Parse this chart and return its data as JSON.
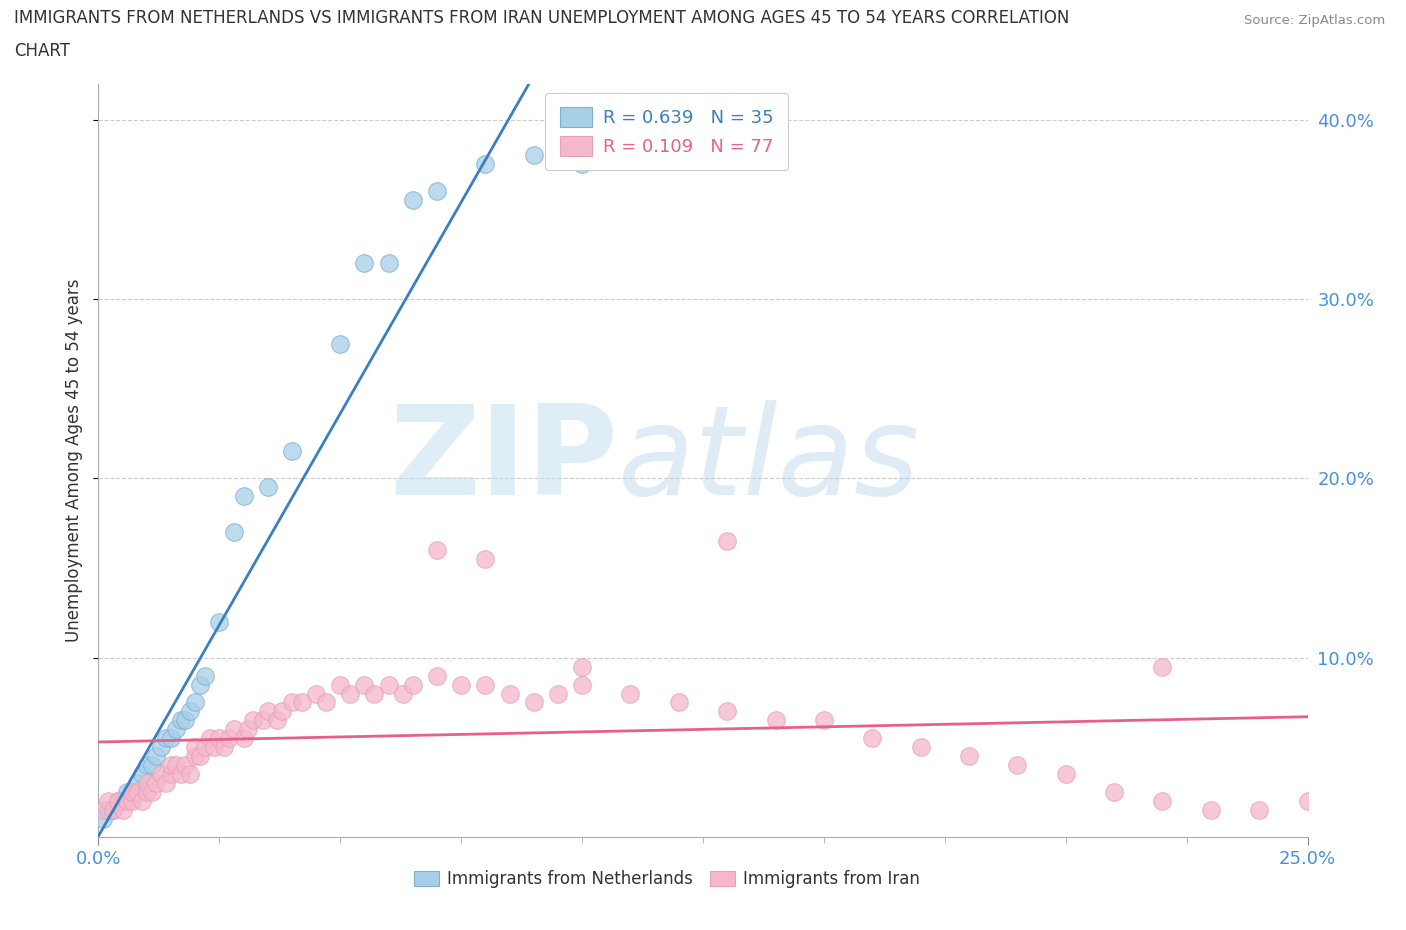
{
  "title_line1": "IMMIGRANTS FROM NETHERLANDS VS IMMIGRANTS FROM IRAN UNEMPLOYMENT AMONG AGES 45 TO 54 YEARS CORRELATION",
  "title_line2": "CHART",
  "source_text": "Source: ZipAtlas.com",
  "ylabel": "Unemployment Among Ages 45 to 54 years",
  "xlim": [
    0.0,
    0.25
  ],
  "ylim": [
    0.0,
    0.42
  ],
  "y_ticks_right": [
    0.1,
    0.2,
    0.3,
    0.4
  ],
  "y_tick_labels_right": [
    "10.0%",
    "20.0%",
    "30.0%",
    "40.0%"
  ],
  "background_color": "#ffffff",
  "grid_color": "#dddddd",
  "watermark_zip": "ZIP",
  "watermark_atlas": "atlas",
  "netherlands_color": "#a8cfe8",
  "iran_color": "#f5b8cb",
  "netherlands_line_color": "#3a7fc1",
  "iran_line_color": "#e8608a",
  "legend_netherlands_R": "0.639",
  "legend_netherlands_N": "35",
  "legend_iran_R": "0.109",
  "legend_iran_N": "77",
  "nl_x": [
    0.001,
    0.002,
    0.003,
    0.004,
    0.005,
    0.006,
    0.007,
    0.008,
    0.009,
    0.01,
    0.011,
    0.012,
    0.013,
    0.014,
    0.015,
    0.016,
    0.017,
    0.018,
    0.019,
    0.02,
    0.021,
    0.022,
    0.025,
    0.028,
    0.03,
    0.035,
    0.04,
    0.05,
    0.055,
    0.06,
    0.065,
    0.07,
    0.08,
    0.09,
    0.1
  ],
  "nl_y": [
    0.01,
    0.015,
    0.015,
    0.02,
    0.02,
    0.025,
    0.025,
    0.03,
    0.035,
    0.04,
    0.04,
    0.045,
    0.05,
    0.055,
    0.055,
    0.06,
    0.065,
    0.065,
    0.07,
    0.075,
    0.085,
    0.09,
    0.12,
    0.17,
    0.19,
    0.195,
    0.215,
    0.275,
    0.32,
    0.32,
    0.355,
    0.36,
    0.375,
    0.38,
    0.375
  ],
  "iran_x": [
    0.001,
    0.002,
    0.003,
    0.004,
    0.005,
    0.006,
    0.007,
    0.007,
    0.008,
    0.009,
    0.01,
    0.01,
    0.011,
    0.012,
    0.013,
    0.014,
    0.015,
    0.015,
    0.016,
    0.017,
    0.018,
    0.019,
    0.02,
    0.02,
    0.021,
    0.022,
    0.023,
    0.024,
    0.025,
    0.026,
    0.027,
    0.028,
    0.03,
    0.031,
    0.032,
    0.034,
    0.035,
    0.037,
    0.038,
    0.04,
    0.042,
    0.045,
    0.047,
    0.05,
    0.052,
    0.055,
    0.057,
    0.06,
    0.063,
    0.065,
    0.07,
    0.075,
    0.08,
    0.085,
    0.09,
    0.095,
    0.1,
    0.11,
    0.12,
    0.13,
    0.14,
    0.15,
    0.16,
    0.17,
    0.18,
    0.19,
    0.2,
    0.21,
    0.22,
    0.23,
    0.24,
    0.25,
    0.07,
    0.08,
    0.1,
    0.13,
    0.22
  ],
  "iran_y": [
    0.015,
    0.02,
    0.015,
    0.02,
    0.015,
    0.02,
    0.02,
    0.025,
    0.025,
    0.02,
    0.025,
    0.03,
    0.025,
    0.03,
    0.035,
    0.03,
    0.035,
    0.04,
    0.04,
    0.035,
    0.04,
    0.035,
    0.045,
    0.05,
    0.045,
    0.05,
    0.055,
    0.05,
    0.055,
    0.05,
    0.055,
    0.06,
    0.055,
    0.06,
    0.065,
    0.065,
    0.07,
    0.065,
    0.07,
    0.075,
    0.075,
    0.08,
    0.075,
    0.085,
    0.08,
    0.085,
    0.08,
    0.085,
    0.08,
    0.085,
    0.09,
    0.085,
    0.085,
    0.08,
    0.075,
    0.08,
    0.085,
    0.08,
    0.075,
    0.07,
    0.065,
    0.065,
    0.055,
    0.05,
    0.045,
    0.04,
    0.035,
    0.025,
    0.02,
    0.015,
    0.015,
    0.02,
    0.16,
    0.155,
    0.095,
    0.165,
    0.095
  ]
}
